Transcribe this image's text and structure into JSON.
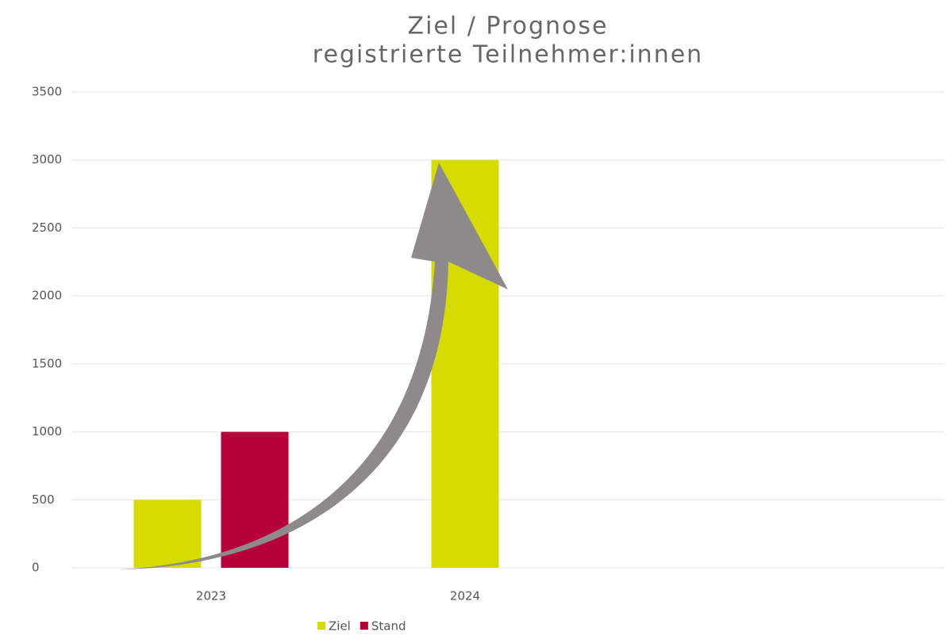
{
  "chart_data": {
    "type": "bar",
    "title": [
      "Ziel / Prognose",
      "registrierte Teilnehmer:innen"
    ],
    "categories": [
      "2023",
      "2024"
    ],
    "series": [
      {
        "name": "Ziel",
        "color": "#d6dc00",
        "values": [
          500,
          3000
        ]
      },
      {
        "name": "Stand",
        "color": "#b5003a",
        "values": [
          1000,
          null
        ]
      }
    ],
    "ylim": [
      0,
      3500
    ],
    "yticks": [
      0,
      500,
      1000,
      1500,
      2000,
      2500,
      3000,
      3500
    ],
    "grid": true,
    "legend": "bottom"
  }
}
